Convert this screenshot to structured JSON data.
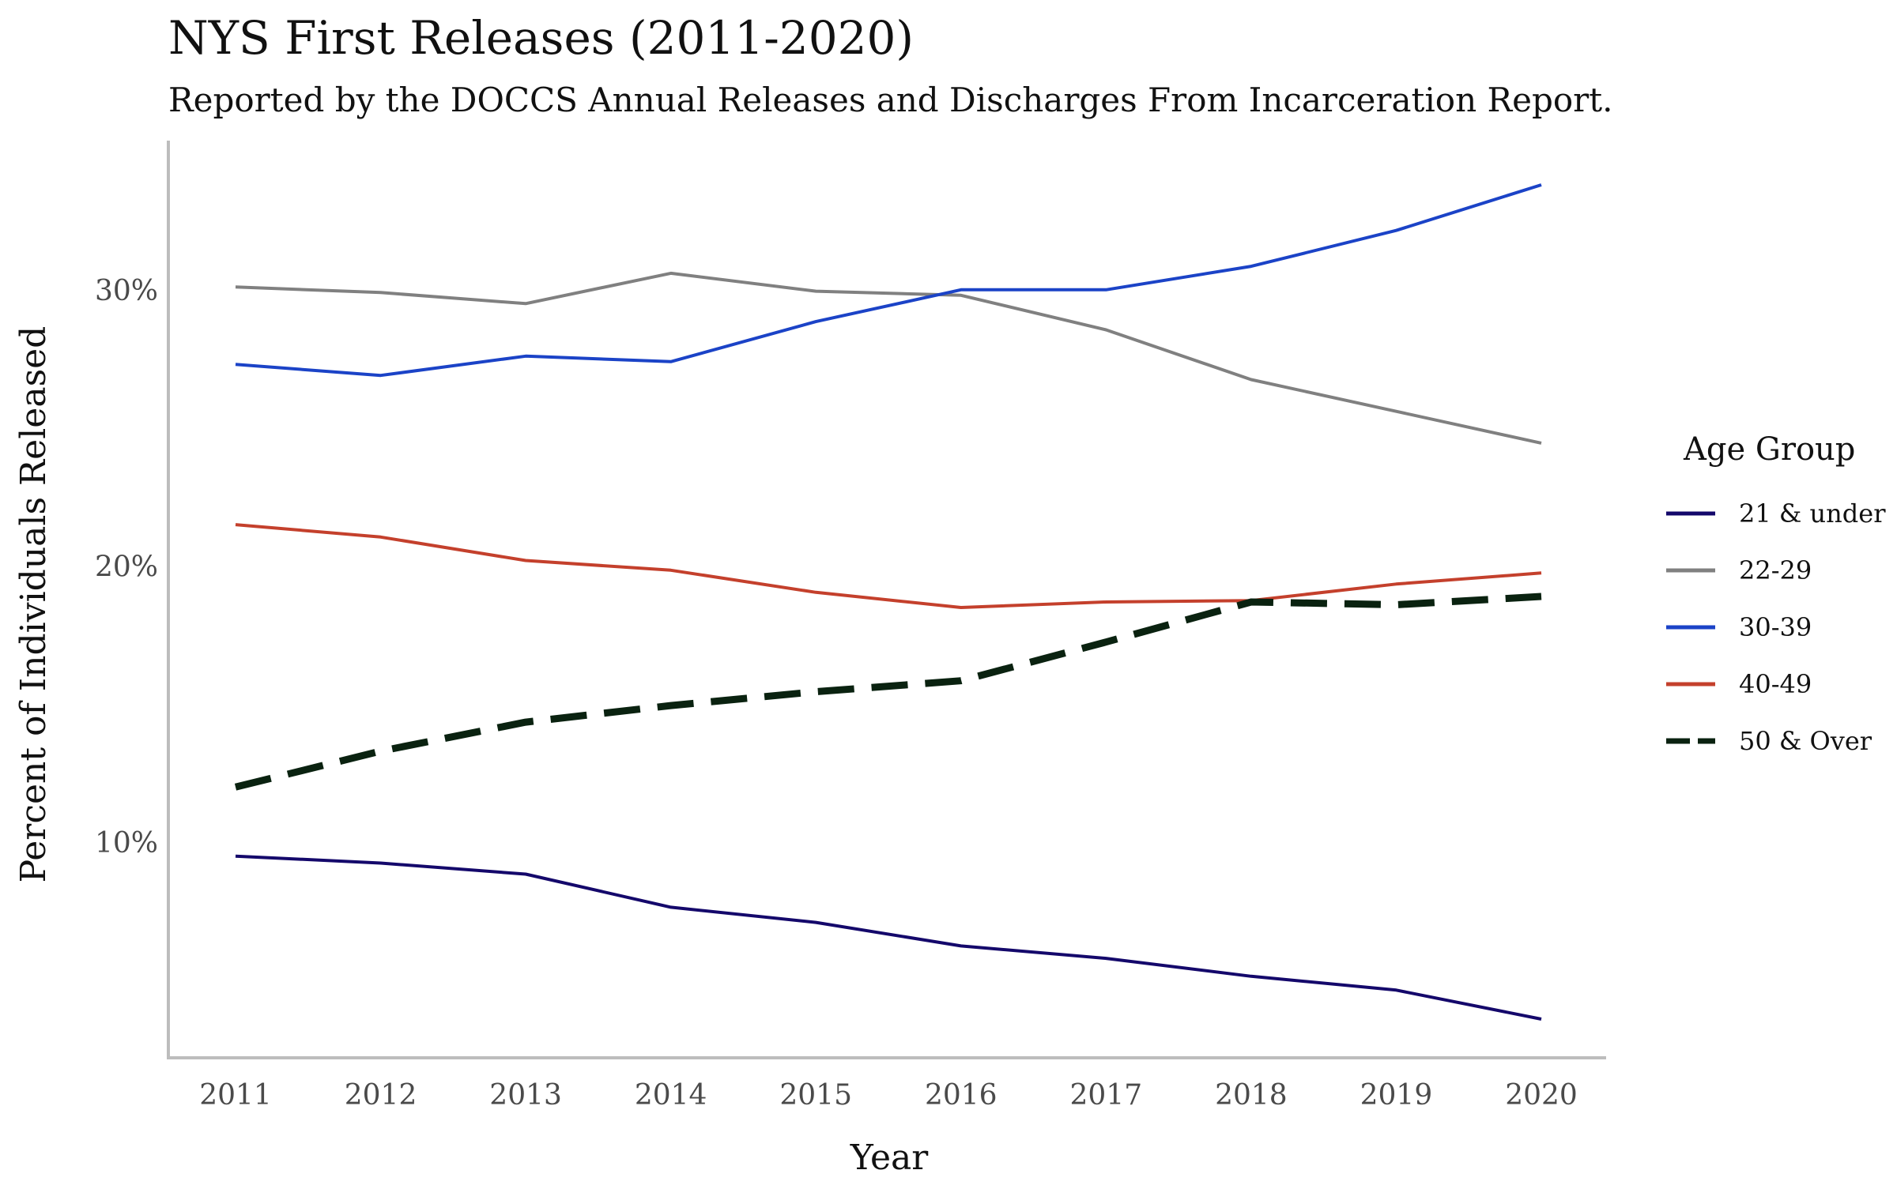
{
  "chart_data": {
    "type": "line",
    "title": "NYS First Releases (2011-2020)",
    "subtitle": "Reported by the DOCCS Annual Releases and Discharges From Incarceration Report.",
    "xlabel": "Year",
    "ylabel": "Percent of Individuals Released",
    "x": [
      "2011",
      "2012",
      "2013",
      "2014",
      "2015",
      "2016",
      "2017",
      "2018",
      "2019",
      "2020"
    ],
    "y_ticks": [
      {
        "value": 10,
        "label": "10%"
      },
      {
        "value": 20,
        "label": "20%"
      },
      {
        "value": 30,
        "label": "30%"
      }
    ],
    "ylim": [
      2.2,
      35.4
    ],
    "grid": false,
    "legend_title": "Age Group",
    "legend_position": "right",
    "series": [
      {
        "name": "21 & under",
        "color": "#14086b",
        "dashed": false,
        "width": 4,
        "values": [
          9.5,
          9.25,
          8.85,
          7.65,
          7.1,
          6.25,
          5.8,
          5.15,
          4.65,
          3.6
        ]
      },
      {
        "name": "22-29",
        "color": "#808080",
        "dashed": false,
        "width": 4,
        "values": [
          30.1,
          29.9,
          29.5,
          30.6,
          29.95,
          29.8,
          28.55,
          26.75,
          25.6,
          24.45
        ]
      },
      {
        "name": "30-39",
        "color": "#1b43c7",
        "dashed": false,
        "width": 4,
        "values": [
          27.3,
          26.9,
          27.6,
          27.4,
          28.85,
          30.0,
          30.0,
          30.85,
          32.15,
          33.8
        ]
      },
      {
        "name": "40-49",
        "color": "#c4402c",
        "dashed": false,
        "width": 4,
        "values": [
          21.5,
          21.05,
          20.2,
          19.85,
          19.05,
          18.5,
          18.7,
          18.75,
          19.35,
          19.75
        ]
      },
      {
        "name": "50 & Over",
        "color": "#0a2210",
        "dashed": true,
        "width": 9,
        "values": [
          12.0,
          13.3,
          14.35,
          14.95,
          15.45,
          15.85,
          17.25,
          18.7,
          18.6,
          18.9
        ]
      }
    ]
  }
}
